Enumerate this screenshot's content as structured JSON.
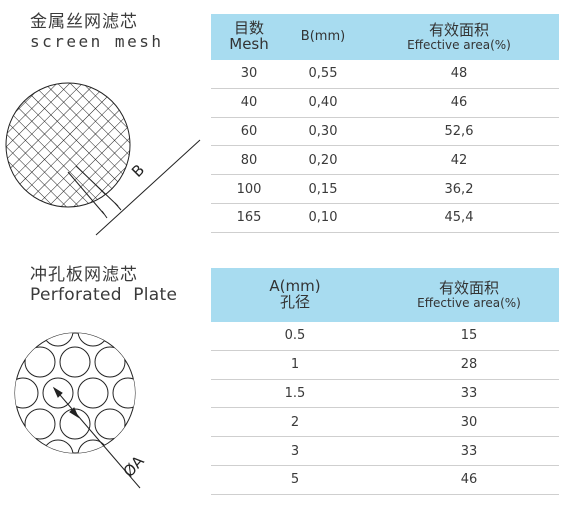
{
  "screen_mesh": {
    "title_zh": "金属丝网滤芯",
    "title_en": "screen mesh",
    "dimension_label": "B",
    "table": {
      "col1_zh": "目数",
      "col1_en": "Mesh",
      "col2": "B(mm)",
      "col3_zh": "有效面积",
      "col3_en": "Effective area(%)",
      "rows": [
        [
          "30",
          "0,55",
          "48"
        ],
        [
          "40",
          "0,40",
          "46"
        ],
        [
          "60",
          "0,30",
          "52,6"
        ],
        [
          "80",
          "0,20",
          "42"
        ],
        [
          "100",
          "0,15",
          "36,2"
        ],
        [
          "165",
          "0,10",
          "45,4"
        ]
      ]
    }
  },
  "perforated_plate": {
    "title_zh": "冲孔板网滤芯",
    "title_en": "Perforated  Plate",
    "dimension_label": "ØA",
    "table": {
      "col1_en": "A(mm)",
      "col1_zh": "孔径",
      "col2_zh": "有效面积",
      "col2_en": "Effective area(%)",
      "rows": [
        [
          "0.5",
          "15"
        ],
        [
          "1",
          "28"
        ],
        [
          "1.5",
          "33"
        ],
        [
          "2",
          "30"
        ],
        [
          "3",
          "33"
        ],
        [
          "5",
          "46"
        ]
      ]
    }
  },
  "colors": {
    "header_bg": "#a8dcf0",
    "row_border": "#cfcfcf",
    "text": "#3a3a3a",
    "line": "#222222"
  }
}
